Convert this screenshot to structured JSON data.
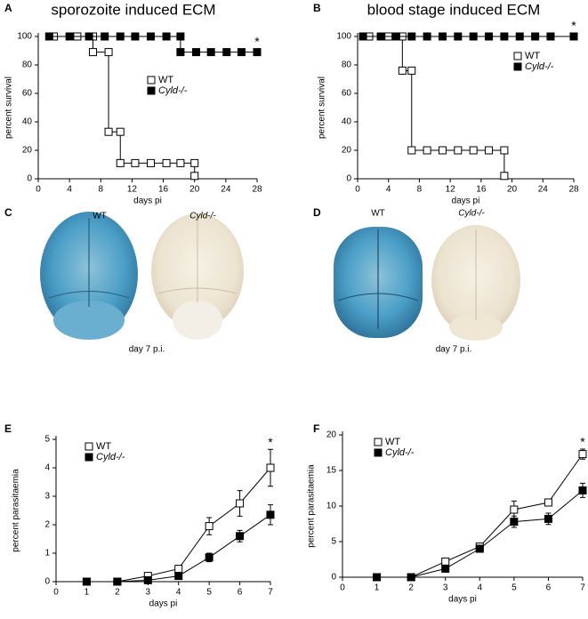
{
  "chart_data": [
    {
      "type": "line",
      "panel": "A",
      "title": "sporozoite induced ECM",
      "xlabel": "days pi",
      "ylabel": "percent survival",
      "annotation": "*",
      "xlim": [
        0,
        28
      ],
      "xticks": [
        0,
        4,
        8,
        12,
        16,
        20,
        24,
        28
      ],
      "ylim": [
        0,
        100
      ],
      "yticks": [
        0,
        20,
        40,
        60,
        80,
        100
      ],
      "series": [
        {
          "name": "WT",
          "color": "#ffffff",
          "x": [
            2,
            5,
            7,
            7,
            9,
            9,
            10.5,
            10.5,
            12.4,
            14.4,
            16.4,
            18.2,
            20,
            20
          ],
          "values": [
            100,
            100,
            100,
            89,
            89,
            33,
            33,
            11,
            11,
            11,
            11,
            11,
            11,
            2
          ]
        },
        {
          "name": "Cyld-/-",
          "color": "#000000",
          "x": [
            1.4,
            4,
            6.5,
            8.5,
            10.5,
            12.4,
            14.4,
            16.4,
            18.2,
            18.2,
            20.2,
            22.1,
            24.1,
            26,
            28
          ],
          "values": [
            100,
            100,
            100,
            100,
            100,
            100,
            100,
            100,
            100,
            89,
            89,
            89,
            89,
            89,
            89
          ]
        }
      ]
    },
    {
      "type": "line",
      "panel": "B",
      "title": "blood stage induced ECM",
      "xlabel": "days pi",
      "ylabel": "percent survival",
      "annotation": "*",
      "xlim": [
        0,
        28
      ],
      "xticks": [
        0,
        4,
        8,
        12,
        16,
        20,
        24,
        28
      ],
      "ylim": [
        0,
        100
      ],
      "yticks": [
        0,
        20,
        40,
        60,
        80,
        100
      ],
      "series": [
        {
          "name": "WT",
          "color": "#ffffff",
          "x": [
            1.5,
            4,
            5.8,
            5.8,
            7,
            7,
            9,
            11,
            13,
            15,
            17,
            19,
            19
          ],
          "values": [
            100,
            100,
            100,
            76,
            76,
            20,
            20,
            20,
            20,
            20,
            20,
            20,
            2
          ]
        },
        {
          "name": "Cyld-/-",
          "color": "#000000",
          "x": [
            0.7,
            3,
            5,
            7,
            9,
            11,
            13,
            15,
            17,
            19,
            21,
            23,
            25,
            28
          ],
          "values": [
            100,
            100,
            100,
            100,
            100,
            100,
            100,
            100,
            100,
            100,
            100,
            100,
            100,
            100
          ]
        }
      ]
    },
    {
      "type": "line",
      "panel": "E",
      "xlabel": "days pi",
      "ylabel": "percent parasitaemia",
      "annotation": "*",
      "xlim": [
        0,
        7
      ],
      "xticks": [
        0,
        1,
        2,
        3,
        4,
        5,
        6,
        7
      ],
      "ylim": [
        0,
        5
      ],
      "yticks": [
        0,
        1,
        2,
        3,
        4,
        5
      ],
      "series": [
        {
          "name": "WT",
          "color": "#ffffff",
          "x": [
            1,
            2,
            3,
            4,
            5,
            6,
            7
          ],
          "values": [
            0,
            0,
            0.2,
            0.45,
            1.95,
            2.75,
            4.0
          ],
          "errors": [
            0,
            0,
            0,
            0.1,
            0.3,
            0.45,
            0.65
          ]
        },
        {
          "name": "Cyld-/-",
          "color": "#000000",
          "x": [
            1,
            2,
            3,
            4,
            5,
            6,
            7
          ],
          "values": [
            0,
            0,
            0.05,
            0.2,
            0.85,
            1.6,
            2.35
          ],
          "errors": [
            0,
            0,
            0,
            0,
            0.15,
            0.2,
            0.35
          ]
        }
      ]
    },
    {
      "type": "line",
      "panel": "F",
      "xlabel": "days pi",
      "ylabel": "percent parasitaemia",
      "annotation": "*",
      "xlim": [
        0,
        7
      ],
      "xticks": [
        0,
        1,
        2,
        3,
        4,
        5,
        6,
        7
      ],
      "ylim": [
        0,
        20
      ],
      "yticks": [
        0,
        5,
        10,
        15,
        20
      ],
      "series": [
        {
          "name": "WT",
          "color": "#ffffff",
          "x": [
            1,
            2,
            3,
            4,
            5,
            6,
            7
          ],
          "values": [
            0,
            0,
            2.2,
            4.3,
            9.5,
            10.5,
            17.3
          ],
          "errors": [
            0,
            0,
            0,
            0.3,
            1.2,
            0.5,
            0.7
          ]
        },
        {
          "name": "Cyld-/-",
          "color": "#000000",
          "x": [
            1,
            2,
            3,
            4,
            5,
            6,
            7
          ],
          "values": [
            0,
            0,
            1.2,
            4.0,
            7.8,
            8.2,
            12.2
          ],
          "errors": [
            0,
            0,
            0,
            0.3,
            0.8,
            0.8,
            1.0
          ]
        }
      ]
    }
  ],
  "images": [
    {
      "panel": "C",
      "labels": [
        "WT",
        "Cyld-/-"
      ],
      "caption": "day 7 p.i."
    },
    {
      "panel": "D",
      "labels": [
        "WT",
        "Cyld-/-"
      ],
      "caption": "day 7 p.i."
    }
  ]
}
